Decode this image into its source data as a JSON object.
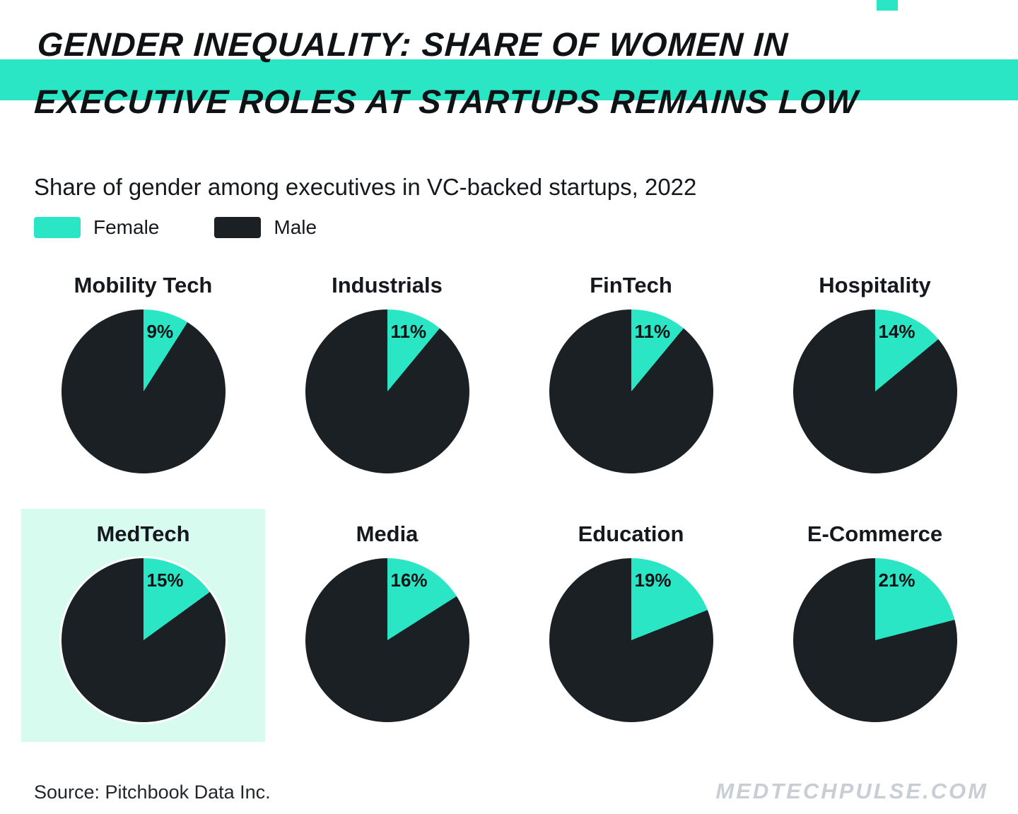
{
  "title": {
    "line1": "GENDER INEQUALITY: SHARE OF WOMEN IN",
    "line2": "EXECUTIVE ROLES AT STARTUPS REMAINS LOW"
  },
  "subtitle": "Share of gender among executives in VC-backed startups, 2022",
  "legend": {
    "female_label": "Female",
    "male_label": "Male"
  },
  "colors": {
    "female": "#2BE6C5",
    "male": "#1B2025",
    "highlight_bg": "#D8FBEF",
    "band": "#2BE6C5",
    "watermark": "#C9CED4"
  },
  "chart_data": {
    "type": "pie",
    "title": "Share of gender among executives in VC-backed startups, 2022",
    "legend": [
      "Female",
      "Male"
    ],
    "unit": "%",
    "slice_start": "12 o'clock, clockwise",
    "charts": [
      {
        "category": "Mobility Tech",
        "female_pct": 9,
        "male_pct": 91,
        "label": "9%",
        "highlighted": false
      },
      {
        "category": "Industrials",
        "female_pct": 11,
        "male_pct": 89,
        "label": "11%",
        "highlighted": false
      },
      {
        "category": "FinTech",
        "female_pct": 11,
        "male_pct": 89,
        "label": "11%",
        "highlighted": false
      },
      {
        "category": "Hospitality",
        "female_pct": 14,
        "male_pct": 86,
        "label": "14%",
        "highlighted": false
      },
      {
        "category": "MedTech",
        "female_pct": 15,
        "male_pct": 85,
        "label": "15%",
        "highlighted": true
      },
      {
        "category": "Media",
        "female_pct": 16,
        "male_pct": 84,
        "label": "16%",
        "highlighted": false
      },
      {
        "category": "Education",
        "female_pct": 19,
        "male_pct": 81,
        "label": "19%",
        "highlighted": false
      },
      {
        "category": "E-Commerce",
        "female_pct": 21,
        "male_pct": 79,
        "label": "21%",
        "highlighted": false
      }
    ]
  },
  "footer": {
    "source": "Source: Pitchbook Data Inc.",
    "watermark": "MEDTECHPULSE.COM"
  }
}
